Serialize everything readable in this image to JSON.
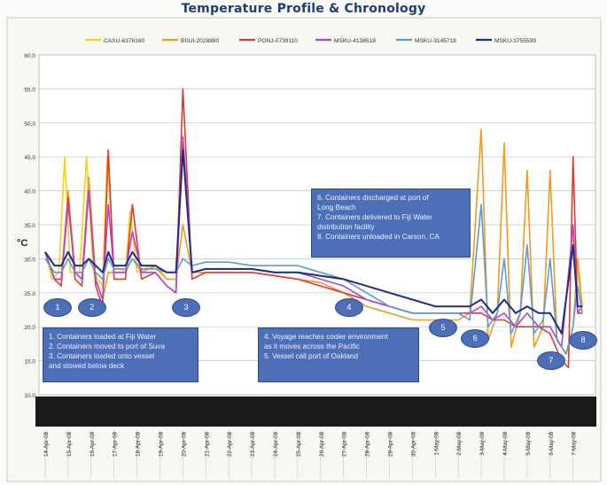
{
  "title": "Temperature Profile & Chronology",
  "chart_data": {
    "type": "line",
    "title": "Temperature Profile & Chronology",
    "ylabel": "°C",
    "xlabel": "",
    "ylim": [
      10,
      60
    ],
    "yticks": [
      "10.0",
      "15.0",
      "20.0",
      "25.0",
      "30.0",
      "35.0",
      "40.0",
      "45.0",
      "50.0",
      "55.0",
      "60.0"
    ],
    "categories": [
      "14-Apr-08",
      "15-Apr-08",
      "16-Apr-08",
      "17-Apr-08",
      "18-Apr-08",
      "19-Apr-08",
      "20-Apr-08",
      "21-Apr-08",
      "22-Apr-08",
      "23-Apr-08",
      "24-Apr-08",
      "25-Apr-08",
      "26-Apr-08",
      "27-Apr-08",
      "28-Apr-08",
      "29-Apr-08",
      "30-Apr-08",
      "1-May-08",
      "2-May-08",
      "3-May-08",
      "4-May-08",
      "5-May-08",
      "6-May-08",
      "7-May-08"
    ],
    "grid": true,
    "legend_position": "top",
    "series": [
      {
        "name": "CAXU-6376160",
        "color": "#f2d21a",
        "points": [
          [
            0,
            31
          ],
          [
            0.3,
            27
          ],
          [
            0.6,
            28
          ],
          [
            0.85,
            45
          ],
          [
            1.1,
            28
          ],
          [
            1.5,
            28
          ],
          [
            1.8,
            45
          ],
          [
            2.1,
            28
          ],
          [
            2.5,
            26
          ],
          [
            2.7,
            45
          ],
          [
            3,
            29
          ],
          [
            3.5,
            28
          ],
          [
            3.7,
            37
          ],
          [
            4,
            28
          ],
          [
            4.6,
            29
          ],
          [
            5,
            28
          ],
          [
            5.3,
            27
          ],
          [
            5.7,
            27
          ],
          [
            6,
            47
          ],
          [
            6.4,
            28
          ],
          [
            7,
            28.5
          ],
          [
            8,
            28.5
          ],
          [
            9,
            28.5
          ],
          [
            10,
            28
          ],
          [
            11,
            28
          ],
          [
            12,
            27.5
          ],
          [
            13,
            27
          ],
          [
            14,
            26
          ],
          [
            15,
            25
          ],
          [
            16,
            24
          ],
          [
            17,
            23
          ],
          [
            18,
            23
          ],
          [
            18.5,
            23
          ],
          [
            19,
            24
          ],
          [
            19.5,
            22
          ],
          [
            20,
            24
          ],
          [
            20.5,
            22
          ],
          [
            21,
            23
          ],
          [
            21.5,
            22
          ],
          [
            22,
            22
          ],
          [
            22.5,
            19
          ],
          [
            23,
            33
          ],
          [
            23.4,
            23
          ]
        ]
      },
      {
        "name": "BSUI-2028880",
        "color": "#f39a1c",
        "points": [
          [
            0,
            31
          ],
          [
            0.4,
            27
          ],
          [
            0.7,
            27
          ],
          [
            1,
            40
          ],
          [
            1.3,
            28
          ],
          [
            1.6,
            27
          ],
          [
            1.9,
            42
          ],
          [
            2.2,
            27
          ],
          [
            2.5,
            24
          ],
          [
            2.75,
            28
          ],
          [
            3,
            28
          ],
          [
            3.5,
            28
          ],
          [
            3.8,
            30
          ],
          [
            4.2,
            28
          ],
          [
            4.8,
            29
          ],
          [
            5.3,
            27
          ],
          [
            5.7,
            27
          ],
          [
            6,
            35
          ],
          [
            6.4,
            28
          ],
          [
            7,
            28
          ],
          [
            8,
            28
          ],
          [
            9,
            28
          ],
          [
            10,
            27.5
          ],
          [
            11,
            27
          ],
          [
            12,
            26.5
          ],
          [
            13,
            25
          ],
          [
            14,
            23
          ],
          [
            15,
            22
          ],
          [
            16,
            21
          ],
          [
            17,
            21
          ],
          [
            18,
            21
          ],
          [
            18.5,
            22
          ],
          [
            19,
            49
          ],
          [
            19.3,
            18
          ],
          [
            19.7,
            22
          ],
          [
            20,
            47
          ],
          [
            20.3,
            17
          ],
          [
            20.7,
            22
          ],
          [
            21,
            43
          ],
          [
            21.3,
            17
          ],
          [
            21.7,
            20
          ],
          [
            22,
            43
          ],
          [
            22.3,
            18
          ],
          [
            22.7,
            16
          ],
          [
            23,
            20
          ],
          [
            23.2,
            30
          ],
          [
            23.4,
            23
          ]
        ]
      },
      {
        "name": "PONJ-0739110",
        "color": "#e03a2e",
        "points": [
          [
            0,
            31
          ],
          [
            0.4,
            27
          ],
          [
            0.7,
            26
          ],
          [
            1,
            39
          ],
          [
            1.3,
            27
          ],
          [
            1.6,
            26
          ],
          [
            1.9,
            40
          ],
          [
            2.2,
            26
          ],
          [
            2.5,
            23
          ],
          [
            2.75,
            46
          ],
          [
            3,
            27
          ],
          [
            3.5,
            27
          ],
          [
            3.8,
            38
          ],
          [
            4.2,
            27
          ],
          [
            4.8,
            28
          ],
          [
            5.3,
            26
          ],
          [
            5.7,
            25
          ],
          [
            6,
            55
          ],
          [
            6.4,
            27
          ],
          [
            7,
            28
          ],
          [
            8,
            28
          ],
          [
            9,
            28
          ],
          [
            10,
            27.5
          ],
          [
            11,
            27
          ],
          [
            12,
            26
          ],
          [
            13,
            25
          ],
          [
            14,
            24
          ],
          [
            15,
            23
          ],
          [
            16,
            22
          ],
          [
            17,
            22
          ],
          [
            18,
            22
          ],
          [
            18.5,
            22
          ],
          [
            19,
            22
          ],
          [
            19.5,
            21
          ],
          [
            20,
            21
          ],
          [
            20.5,
            20
          ],
          [
            21,
            20
          ],
          [
            21.5,
            20
          ],
          [
            22,
            19
          ],
          [
            22.5,
            15
          ],
          [
            22.8,
            14
          ],
          [
            23,
            45
          ],
          [
            23.2,
            22
          ],
          [
            23.4,
            22
          ]
        ]
      },
      {
        "name": "MSKU-4138518",
        "color": "#b744c9",
        "points": [
          [
            0,
            31
          ],
          [
            0.4,
            27
          ],
          [
            0.7,
            27
          ],
          [
            1,
            38
          ],
          [
            1.3,
            28
          ],
          [
            1.6,
            27
          ],
          [
            1.9,
            40
          ],
          [
            2.2,
            27
          ],
          [
            2.5,
            24
          ],
          [
            2.75,
            38
          ],
          [
            3,
            28
          ],
          [
            3.5,
            28
          ],
          [
            3.8,
            34
          ],
          [
            4.2,
            28
          ],
          [
            4.8,
            28
          ],
          [
            5.3,
            26
          ],
          [
            5.7,
            25
          ],
          [
            6,
            48
          ],
          [
            6.4,
            28
          ],
          [
            7,
            28.5
          ],
          [
            8,
            28.5
          ],
          [
            9,
            28.5
          ],
          [
            10,
            28
          ],
          [
            11,
            28
          ],
          [
            12,
            27
          ],
          [
            13,
            26
          ],
          [
            14,
            24
          ],
          [
            15,
            23
          ],
          [
            16,
            22
          ],
          [
            17,
            22
          ],
          [
            18,
            22
          ],
          [
            18.5,
            22
          ],
          [
            19,
            23
          ],
          [
            19.5,
            21
          ],
          [
            20,
            22
          ],
          [
            20.5,
            20
          ],
          [
            21,
            22
          ],
          [
            21.5,
            20
          ],
          [
            22,
            20
          ],
          [
            22.5,
            17
          ],
          [
            23,
            35
          ],
          [
            23.2,
            22
          ],
          [
            23.4,
            23
          ]
        ]
      },
      {
        "name": "MSKU-3145718",
        "color": "#5b9bd5",
        "points": [
          [
            0,
            30
          ],
          [
            0.4,
            28
          ],
          [
            0.7,
            28
          ],
          [
            1,
            30
          ],
          [
            1.3,
            28
          ],
          [
            1.6,
            28
          ],
          [
            1.9,
            30
          ],
          [
            2.2,
            28
          ],
          [
            2.5,
            27
          ],
          [
            2.75,
            30
          ],
          [
            3,
            28.5
          ],
          [
            3.5,
            28.5
          ],
          [
            3.8,
            30
          ],
          [
            4.2,
            28.5
          ],
          [
            4.8,
            28.5
          ],
          [
            5.3,
            28
          ],
          [
            5.7,
            28
          ],
          [
            6,
            30
          ],
          [
            6.4,
            29
          ],
          [
            7,
            29.5
          ],
          [
            8,
            29.5
          ],
          [
            9,
            29
          ],
          [
            10,
            29
          ],
          [
            11,
            29
          ],
          [
            12,
            28
          ],
          [
            13,
            27
          ],
          [
            14,
            25
          ],
          [
            15,
            23
          ],
          [
            16,
            22
          ],
          [
            17,
            22
          ],
          [
            18,
            22
          ],
          [
            18.5,
            21
          ],
          [
            19,
            38
          ],
          [
            19.3,
            20
          ],
          [
            19.7,
            22
          ],
          [
            20,
            30
          ],
          [
            20.3,
            19
          ],
          [
            20.7,
            22
          ],
          [
            21,
            32
          ],
          [
            21.3,
            19
          ],
          [
            21.7,
            21
          ],
          [
            22,
            30
          ],
          [
            22.3,
            18
          ],
          [
            22.7,
            16
          ],
          [
            23,
            20
          ],
          [
            23.2,
            26
          ],
          [
            23.4,
            22
          ]
        ]
      },
      {
        "name": "MSKU-3755599",
        "color": "#1f2d8a",
        "points": [
          [
            0,
            31
          ],
          [
            0.4,
            29
          ],
          [
            0.7,
            29
          ],
          [
            1,
            31
          ],
          [
            1.3,
            29
          ],
          [
            1.6,
            29
          ],
          [
            1.9,
            30
          ],
          [
            2.2,
            29
          ],
          [
            2.5,
            28
          ],
          [
            2.75,
            31
          ],
          [
            3,
            29
          ],
          [
            3.5,
            29
          ],
          [
            3.8,
            31
          ],
          [
            4.2,
            29
          ],
          [
            4.8,
            29
          ],
          [
            5.3,
            28
          ],
          [
            5.7,
            28
          ],
          [
            6,
            46
          ],
          [
            6.4,
            28
          ],
          [
            7,
            28.5
          ],
          [
            8,
            28.5
          ],
          [
            9,
            28.5
          ],
          [
            10,
            28
          ],
          [
            11,
            28
          ],
          [
            12,
            27.5
          ],
          [
            13,
            27
          ],
          [
            14,
            26
          ],
          [
            15,
            25
          ],
          [
            16,
            24
          ],
          [
            17,
            23
          ],
          [
            18,
            23
          ],
          [
            18.5,
            23
          ],
          [
            19,
            24
          ],
          [
            19.5,
            22
          ],
          [
            20,
            24
          ],
          [
            20.5,
            22
          ],
          [
            21,
            23
          ],
          [
            21.5,
            22
          ],
          [
            22,
            22
          ],
          [
            22.5,
            19
          ],
          [
            23,
            32
          ],
          [
            23.2,
            23
          ],
          [
            23.4,
            23
          ]
        ]
      }
    ],
    "markers": [
      {
        "label": "1",
        "x": 0.5,
        "y": 23
      },
      {
        "label": "2",
        "x": 2.0,
        "y": 23
      },
      {
        "label": "3",
        "x": 6.1,
        "y": 23
      },
      {
        "label": "4",
        "x": 13.2,
        "y": 23
      },
      {
        "label": "5",
        "x": 17.3,
        "y": 20
      },
      {
        "label": "6",
        "x": 18.7,
        "y": 18.4
      },
      {
        "label": "7",
        "x": 22.0,
        "y": 15.2
      },
      {
        "label": "8",
        "x": 23.4,
        "y": 18.2
      }
    ],
    "annotations": [
      {
        "id": "box-1-3",
        "lines": [
          "1.  Containers loaded at Fiji Water",
          "2.  Containers moved to port of Suva",
          "3.  Containers loaded onto vessel",
          "     and stowed below deck"
        ]
      },
      {
        "id": "box-4-5",
        "lines": [
          "4.  Voyage reaches cooler environment",
          "     as it moves across the Pacific",
          "5.  Vessel call port of Oakland"
        ]
      },
      {
        "id": "box-6-8",
        "lines": [
          "6.  Containers discharged at port of",
          "     Long Beach",
          "7.  Containers delivered to  Fiji Water",
          "     distribution facility",
          "8.  Containers unloaded in Carson, CA"
        ]
      }
    ]
  }
}
